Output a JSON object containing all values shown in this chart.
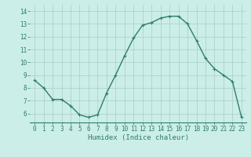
{
  "x": [
    0,
    1,
    2,
    3,
    4,
    5,
    6,
    7,
    8,
    9,
    10,
    11,
    12,
    13,
    14,
    15,
    16,
    17,
    18,
    19,
    20,
    21,
    22,
    23
  ],
  "y": [
    8.6,
    8.0,
    7.1,
    7.1,
    6.6,
    5.9,
    5.7,
    5.9,
    7.6,
    9.0,
    10.5,
    11.9,
    12.9,
    13.1,
    13.45,
    13.6,
    13.6,
    13.0,
    11.7,
    10.3,
    9.5,
    9.0,
    8.5,
    5.7
  ],
  "line_color": "#2d7d6e",
  "marker": "+",
  "marker_size": 3,
  "marker_linewidth": 0.8,
  "bg_color": "#cceee8",
  "grid_color": "#aaccc6",
  "tick_color": "#2d7d6e",
  "label_color": "#2d7d6e",
  "xlabel": "Humidex (Indice chaleur)",
  "ylim": [
    5.3,
    14.5
  ],
  "yticks": [
    6,
    7,
    8,
    9,
    10,
    11,
    12,
    13,
    14
  ],
  "xticks": [
    0,
    1,
    2,
    3,
    4,
    5,
    6,
    7,
    8,
    9,
    10,
    11,
    12,
    13,
    14,
    15,
    16,
    17,
    18,
    19,
    20,
    21,
    22,
    23
  ],
  "xlim": [
    -0.5,
    23.5
  ],
  "linewidth": 1.0,
  "font_family": "monospace",
  "tick_fontsize": 5.5,
  "xlabel_fontsize": 6.5
}
